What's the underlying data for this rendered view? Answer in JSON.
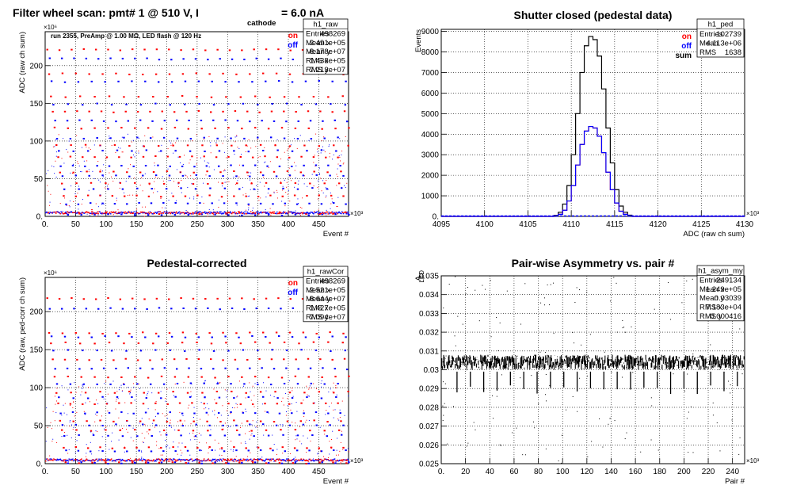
{
  "chart_data": [
    {
      "id": "raw",
      "type": "scatter",
      "title": "Filter wheel scan: pmt#   1 @   510 V, I",
      "title_sub": "cathode",
      "title_tail": "= 6.0 nA",
      "annotation": "run 2355, PreAmp @ 1.00 MΩ, LED flash @  120 Hz",
      "xlabel": "Event #",
      "ylabel": "ADC (raw ch sum)",
      "x_exponent": "×10³",
      "y_exponent": "×10⁶",
      "xlim": [
        0,
        499
      ],
      "ylim": [
        0,
        245
      ],
      "x_ticks": [
        0,
        50,
        100,
        150,
        200,
        250,
        300,
        350,
        400,
        450
      ],
      "y_ticks": [
        0,
        50,
        100,
        150,
        200
      ],
      "grid": true,
      "legend": [
        {
          "label": "on",
          "color": "#ff0000"
        },
        {
          "label": "off",
          "color": "#0000ff"
        }
      ],
      "stats": {
        "name": "h1_raw",
        "rows": [
          [
            "Entries",
            "498269"
          ],
          [
            "Mean x",
            "2.491e+05"
          ],
          [
            "Mean y",
            "8.178e+07"
          ],
          [
            "RMS x",
            "1.438e+05"
          ],
          [
            "RMS y",
            "7.213e+07"
          ]
        ]
      },
      "series": [
        {
          "label": "on",
          "color": "#ff0000",
          "levels": [
            222,
            190,
            160,
            140,
            118,
            95,
            80,
            60,
            45,
            28,
            5
          ]
        },
        {
          "label": "off",
          "color": "#0000ff",
          "levels": [
            210,
            180,
            150,
            128,
            105,
            88,
            68,
            55,
            38,
            18,
            3
          ]
        }
      ]
    },
    {
      "id": "ped",
      "type": "histogram",
      "title": "Shutter closed (pedestal data)",
      "xlabel": "ADC (raw ch sum)",
      "ylabel": "Events",
      "x_exponent": "×10³",
      "xlim": [
        4095,
        4130
      ],
      "ylim": [
        0,
        9100
      ],
      "x_ticks": [
        4095,
        4100,
        4105,
        4110,
        4115,
        4120,
        4125,
        4130
      ],
      "y_ticks": [
        0,
        1000,
        2000,
        3000,
        4000,
        5000,
        6000,
        7000,
        8000,
        9000
      ],
      "grid": true,
      "legend": [
        {
          "label": "on",
          "color": "#ff0000"
        },
        {
          "label": "off",
          "color": "#0000ff"
        },
        {
          "label": "sum",
          "color": "#000000"
        }
      ],
      "stats": {
        "name": "h1_ped",
        "rows": [
          [
            "Entries",
            "102739"
          ],
          [
            "Mean",
            "4.113e+06"
          ],
          [
            "RMS",
            "1638"
          ]
        ]
      },
      "histogram": {
        "bin_start": 4108,
        "bin_width": 0.5,
        "sum": [
          50,
          200,
          600,
          1500,
          3000,
          5000,
          7000,
          8300,
          8750,
          8600,
          7800,
          6200,
          4300,
          2600,
          1300,
          500,
          200,
          60
        ],
        "on": [
          25,
          100,
          300,
          750,
          1500,
          2500,
          3500,
          4150,
          4375,
          4300,
          3900,
          3100,
          2150,
          1300,
          650,
          250,
          100,
          30
        ],
        "off": [
          25,
          100,
          300,
          750,
          1500,
          2500,
          3500,
          4150,
          4375,
          4300,
          3900,
          3100,
          2150,
          1300,
          650,
          250,
          100,
          30
        ]
      }
    },
    {
      "id": "rawCor",
      "type": "scatter",
      "title": "Pedestal-corrected",
      "xlabel": "Event #",
      "ylabel": "ADC (raw, ped-corr ch sum)",
      "x_exponent": "×10³",
      "y_exponent": "×10⁶",
      "xlim": [
        0,
        499
      ],
      "ylim": [
        0,
        245
      ],
      "x_ticks": [
        0,
        50,
        100,
        150,
        200,
        250,
        300,
        350,
        400,
        450
      ],
      "y_ticks": [
        0,
        50,
        100,
        150,
        200
      ],
      "grid": true,
      "legend": [
        {
          "label": "on",
          "color": "#ff0000"
        },
        {
          "label": "off",
          "color": "#0000ff"
        }
      ],
      "stats": {
        "name": "h1_rawCor",
        "rows": [
          [
            "Entries",
            "498269"
          ],
          [
            "Mean x",
            "2.521e+05"
          ],
          [
            "Mean y",
            "8.644e+07"
          ],
          [
            "RMS x",
            "1.427e+05"
          ],
          [
            "RMS y",
            "7.094e+07"
          ]
        ]
      },
      "series": [
        {
          "label": "on",
          "color": "#ff0000",
          "levels": [
            218,
            173,
            160,
            138,
            115,
            95,
            80,
            57,
            45,
            22,
            2
          ]
        },
        {
          "label": "off",
          "color": "#0000ff",
          "levels": [
            205,
            168,
            150,
            126,
            106,
            88,
            68,
            52,
            38,
            18,
            2
          ]
        }
      ]
    },
    {
      "id": "asym",
      "type": "scatter",
      "title": "Pair-wise Asymmetry vs. pair #",
      "xlabel": "Pair #",
      "ylabel": "A",
      "ylabel_sub": "LED",
      "x_exponent": "×10³",
      "xlim": [
        0,
        250
      ],
      "ylim": [
        0.025,
        0.035
      ],
      "x_ticks": [
        0,
        20,
        40,
        60,
        80,
        100,
        120,
        140,
        160,
        180,
        200,
        220,
        240
      ],
      "y_ticks": [
        0.025,
        0.026,
        0.027,
        0.028,
        0.029,
        0.03,
        0.031,
        0.032,
        0.033,
        0.034,
        0.035
      ],
      "grid": true,
      "stats": {
        "name": "h1_asym_my",
        "rows": [
          [
            "Entries",
            "249134"
          ],
          [
            "Mean x",
            "1.249e+05"
          ],
          [
            "Mean y",
            "0.03039"
          ],
          [
            "RMS x",
            "7.183e+04"
          ],
          [
            "RMS y",
            "0.000416"
          ]
        ]
      },
      "band": {
        "center": 0.0304,
        "width": 0.0004,
        "color": "#000000"
      }
    }
  ]
}
